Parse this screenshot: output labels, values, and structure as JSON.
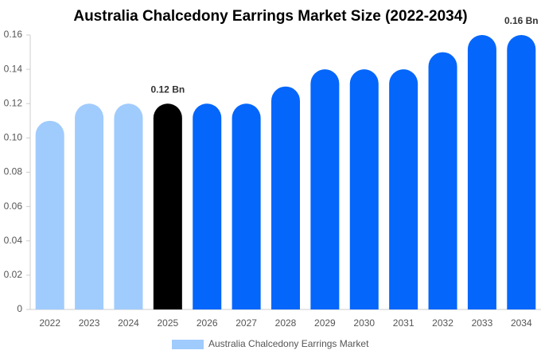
{
  "chart_data": {
    "type": "bar",
    "title": "Australia Chalcedony Earrings Market Size (2022-2034)",
    "categories": [
      "2022",
      "2023",
      "2024",
      "2025",
      "2026",
      "2027",
      "2028",
      "2029",
      "2030",
      "2031",
      "2032",
      "2033",
      "2034"
    ],
    "series": [
      {
        "name": "Australia Chalcedony Earrings Market",
        "color": "#a0cbfd",
        "values": [
          0.11,
          0.12,
          0.12,
          0.12,
          0.12,
          0.12,
          0.13,
          0.14,
          0.14,
          0.14,
          0.15,
          0.16,
          0.16
        ],
        "value_labels": [
          null,
          null,
          null,
          "0.12 Bn",
          null,
          null,
          null,
          null,
          null,
          null,
          null,
          null,
          "0.16 Bn"
        ],
        "bar_colors": [
          "#a0cbfd",
          "#a0cbfd",
          "#a0cbfd",
          "#000000",
          "#0466fb",
          "#0466fb",
          "#0466fb",
          "#0466fb",
          "#0466fb",
          "#0466fb",
          "#0466fb",
          "#0466fb",
          "#0466fb"
        ]
      }
    ],
    "ylim": [
      0,
      0.16
    ],
    "yticks": [
      0,
      0.02,
      0.04,
      0.06,
      0.08,
      {
        "value": 0.1,
        "label": "0.10"
      },
      0.12,
      0.14,
      0.16
    ],
    "grid": false
  }
}
